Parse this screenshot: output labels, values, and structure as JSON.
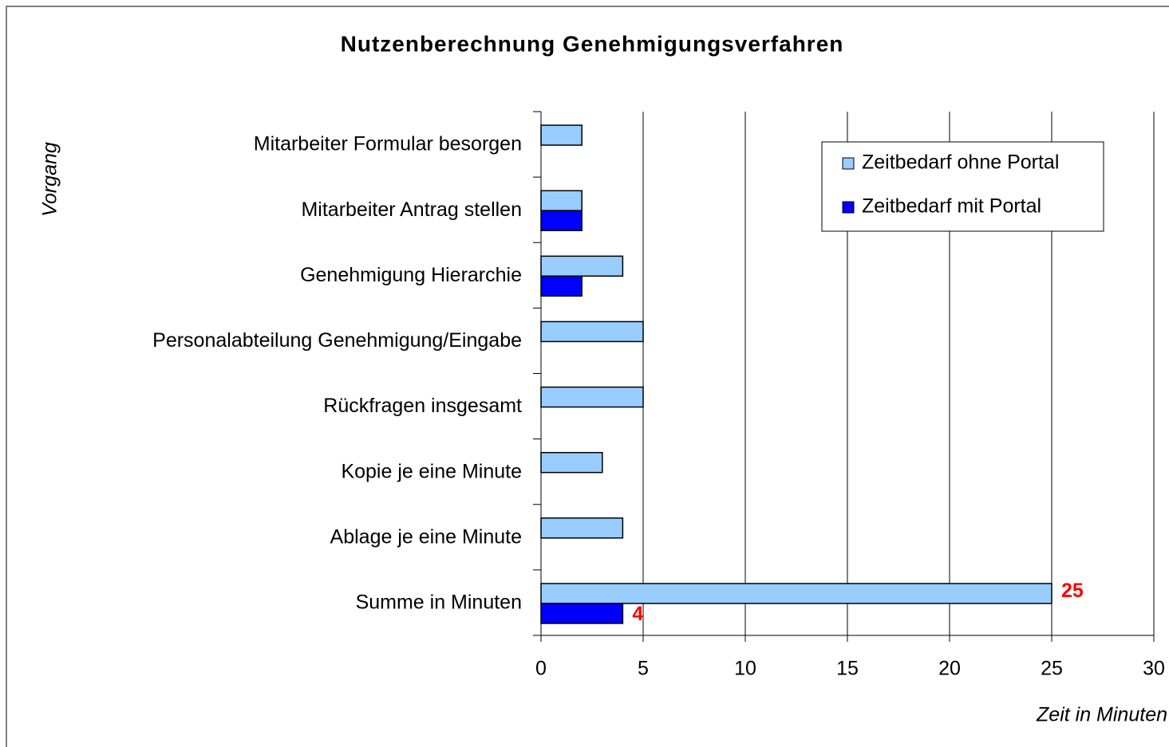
{
  "chart_data": {
    "type": "bar",
    "orientation": "horizontal",
    "title": "Nutzenberechnung Genehmigungsverfahren",
    "x_label": "Zeit in Minuten",
    "y_label": "Vorgang",
    "categories": [
      "Mitarbeiter Formular besorgen",
      "Mitarbeiter Antrag stellen",
      "Genehmigung Hierarchie",
      "Personalabteilung Genehmigung/Eingabe",
      "Rückfragen insgesamt",
      "Kopie je eine Minute",
      "Ablage je eine Minute",
      "Summe in Minuten"
    ],
    "series": [
      {
        "name": "Zeitbedarf ohne Portal",
        "color": "#99ccff",
        "values": [
          2,
          2,
          4,
          5,
          5,
          3,
          4,
          25
        ],
        "value_labels": [
          null,
          null,
          null,
          null,
          null,
          null,
          null,
          "25"
        ]
      },
      {
        "name": "Zeitbedarf mit Portal",
        "color": "#0000ff",
        "values": [
          null,
          2,
          2,
          null,
          null,
          null,
          null,
          4
        ],
        "value_labels": [
          null,
          null,
          null,
          null,
          null,
          null,
          null,
          "4"
        ]
      }
    ],
    "value_label_color": "#ff0000",
    "xlim": [
      0,
      30
    ],
    "xticks": [
      0,
      5,
      10,
      15,
      20,
      25,
      30
    ],
    "grid": true,
    "legend": "upper right"
  }
}
